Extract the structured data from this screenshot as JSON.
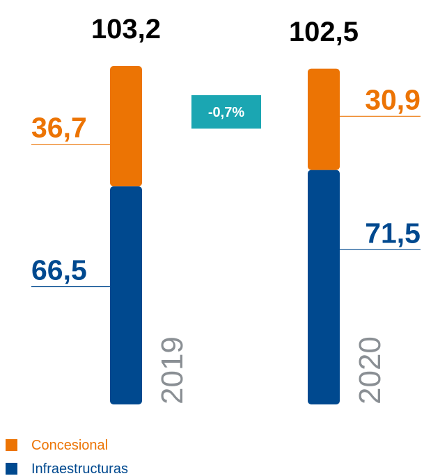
{
  "chart_data": {
    "type": "stacked_bar",
    "categories": [
      "2019",
      "2020"
    ],
    "totals": [
      103.2,
      102.5
    ],
    "total_labels": [
      "103,2",
      "102,5"
    ],
    "annotation": "-0,7%",
    "series": [
      {
        "name": "Infraestructuras",
        "color": "#00498f",
        "values": [
          66.5,
          71.5
        ],
        "value_labels": [
          "66,5",
          "71,5"
        ]
      },
      {
        "name": "Concesional",
        "color": "#ec7404",
        "values": [
          36.7,
          30.9
        ],
        "value_labels": [
          "36,7",
          "30,9"
        ]
      }
    ],
    "legend": "bottom-left"
  }
}
